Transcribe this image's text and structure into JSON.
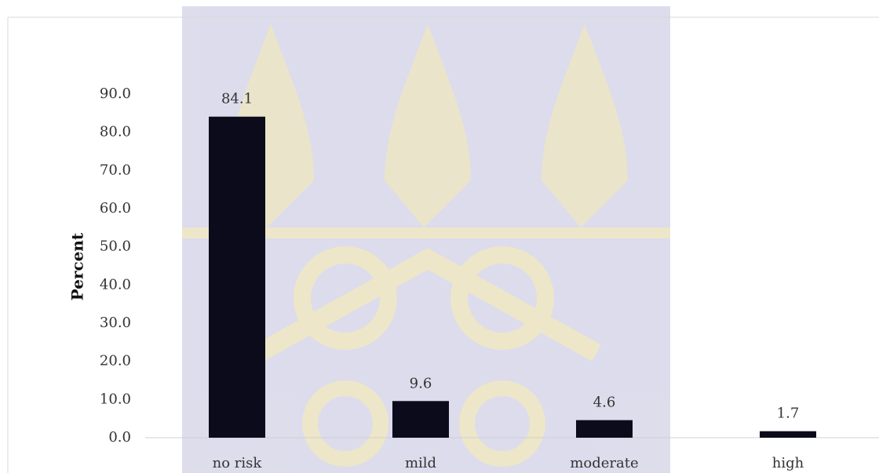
{
  "chart_data": {
    "type": "bar",
    "y_label": "Percent",
    "categories": [
      "no risk",
      "mild",
      "moderate",
      "high"
    ],
    "values": [
      84.1,
      9.6,
      4.6,
      1.7
    ],
    "color": "#0b0b1c",
    "ylim": [
      0,
      90
    ],
    "yticks": [
      {
        "value": 0,
        "label": "0.0"
      },
      {
        "value": 10,
        "label": "10.0"
      },
      {
        "value": 20,
        "label": "20.0"
      },
      {
        "value": 30,
        "label": "30.0"
      },
      {
        "value": 40,
        "label": "40.0"
      },
      {
        "value": 50,
        "label": "50.0"
      },
      {
        "value": 60,
        "label": "60.0"
      },
      {
        "value": 70,
        "label": "70.0"
      },
      {
        "value": 80,
        "label": "80.0"
      },
      {
        "value": 90,
        "label": "90.0"
      }
    ],
    "grid": false
  }
}
